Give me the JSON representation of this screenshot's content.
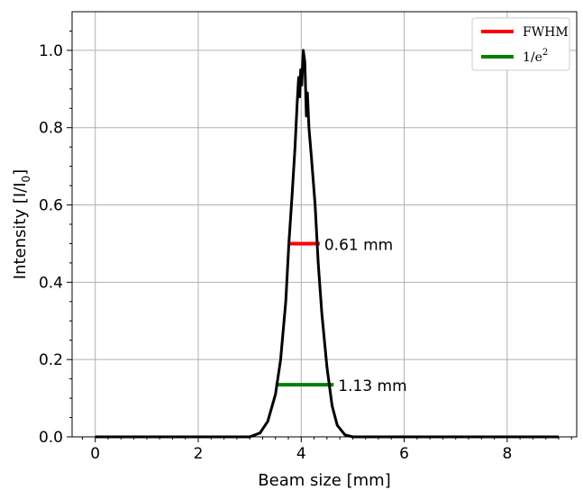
{
  "chart_data": {
    "type": "line",
    "xlabel": "Beam size [mm]",
    "ylabel_main": "Intensity [I/I",
    "ylabel_sub": "0",
    "ylabel_end": "]",
    "xlim": [
      -0.45,
      9.35
    ],
    "ylim": [
      0,
      1.1
    ],
    "xticks": [
      0,
      2,
      4,
      6,
      8
    ],
    "yticks": [
      0.0,
      0.2,
      0.4,
      0.6,
      0.8,
      1.0
    ],
    "xtick_labels": [
      "0",
      "2",
      "4",
      "6",
      "8"
    ],
    "ytick_labels": [
      "0.0",
      "0.2",
      "0.4",
      "0.6",
      "0.8",
      "1.0"
    ],
    "grid": true,
    "profile": {
      "color": "#000000",
      "x_range": [
        0,
        9
      ],
      "points": [
        [
          3.0,
          0.0
        ],
        [
          3.2,
          0.01
        ],
        [
          3.35,
          0.04
        ],
        [
          3.5,
          0.11
        ],
        [
          3.6,
          0.2
        ],
        [
          3.7,
          0.35
        ],
        [
          3.76,
          0.5
        ],
        [
          3.82,
          0.62
        ],
        [
          3.88,
          0.75
        ],
        [
          3.92,
          0.86
        ],
        [
          3.95,
          0.93
        ],
        [
          3.97,
          0.88
        ],
        [
          3.99,
          0.95
        ],
        [
          4.01,
          0.91
        ],
        [
          4.04,
          1.0
        ],
        [
          4.07,
          0.97
        ],
        [
          4.1,
          0.83
        ],
        [
          4.12,
          0.89
        ],
        [
          4.15,
          0.8
        ],
        [
          4.2,
          0.72
        ],
        [
          4.27,
          0.6
        ],
        [
          4.33,
          0.45
        ],
        [
          4.4,
          0.32
        ],
        [
          4.5,
          0.18
        ],
        [
          4.6,
          0.08
        ],
        [
          4.7,
          0.03
        ],
        [
          4.85,
          0.005
        ],
        [
          5.0,
          0.0
        ]
      ]
    },
    "markers": [
      {
        "name": "FWHM",
        "color": "#ff0000",
        "x0": 3.75,
        "x1": 4.36,
        "y": 0.5,
        "label": "0.61 mm"
      },
      {
        "name": "1/e²",
        "color": "#008000",
        "x0": 3.5,
        "x1": 4.63,
        "y": 0.135,
        "label": "1.13 mm"
      }
    ],
    "legend": {
      "position": "top-right",
      "entries": [
        {
          "label": "FWHM",
          "color": "#ff0000"
        },
        {
          "label_main": "1/e",
          "label_sup": "2",
          "color": "#008000"
        }
      ]
    }
  }
}
